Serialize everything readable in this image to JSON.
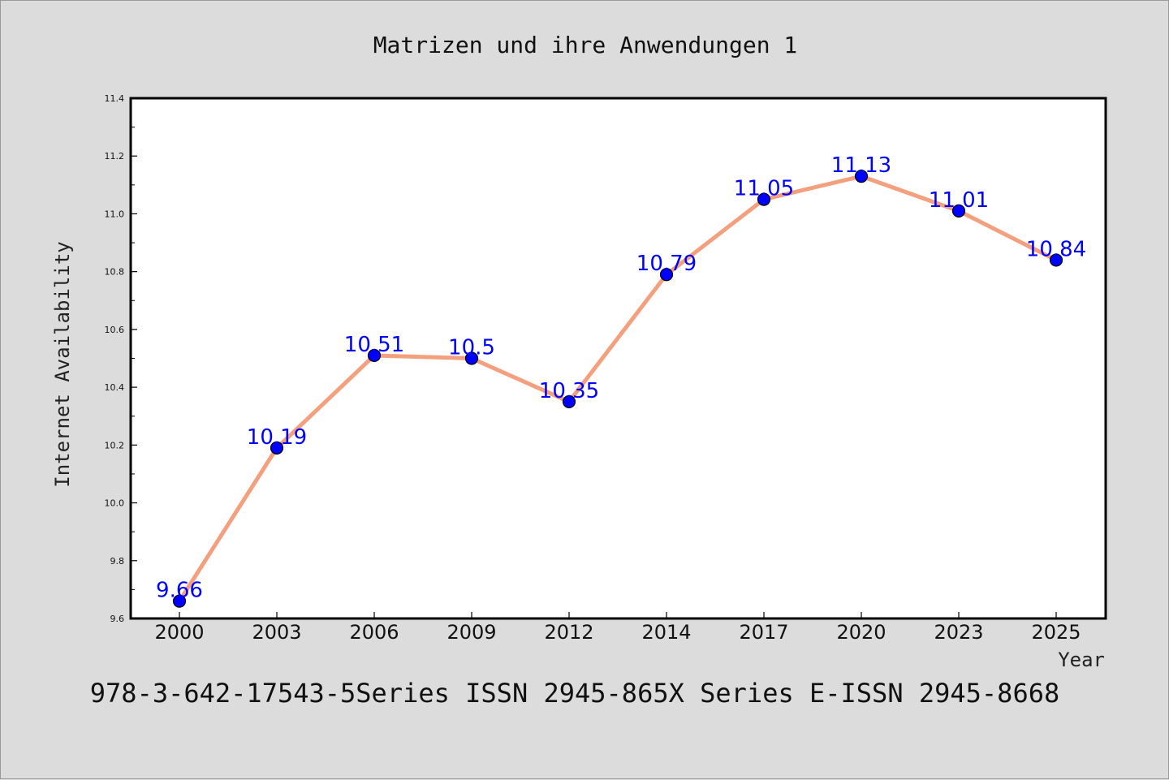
{
  "chart_data": {
    "type": "line",
    "title": "Matrizen und ihre Anwendungen 1",
    "xlabel": "Year",
    "ylabel": "Internet Availability",
    "categories": [
      "2000",
      "2003",
      "2006",
      "2009",
      "2012",
      "2014",
      "2017",
      "2020",
      "2023",
      "2025"
    ],
    "values": [
      9.66,
      10.19,
      10.51,
      10.5,
      10.35,
      10.79,
      11.05,
      11.13,
      11.01,
      10.84
    ],
    "data_labels": [
      "9.66",
      "10.19",
      "10.51",
      "10.5",
      "10.35",
      "10.79",
      "11.05",
      "11.13",
      "11.01",
      "10.84"
    ],
    "ylim": [
      9.6,
      11.4
    ],
    "yticks": [
      "9.6",
      "9.8",
      "10.0",
      "10.2",
      "10.4",
      "10.6",
      "10.8",
      "11.0",
      "11.2",
      "11.4"
    ],
    "grid": false,
    "line_color": "#f4a07e",
    "marker_color": "#0000ff",
    "label_color": "#0000ff"
  },
  "caption": "978-3-642-17543-5Series ISSN 2945-865X Series E-ISSN 2945-8668"
}
